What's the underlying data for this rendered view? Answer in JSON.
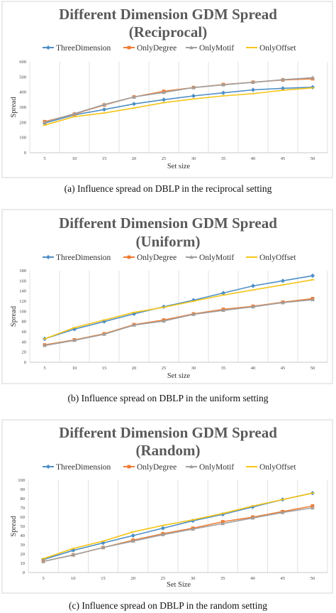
{
  "colors": {
    "ThreeDimension": "#4e8fc6",
    "OnlyDegree": "#ee7d35",
    "OnlyMotif": "#a0a0a0",
    "OnlyOffset": "#f5c518"
  },
  "chart_data": [
    {
      "type": "line",
      "title": [
        "Different Dimension GDM Spread",
        "(Reciprocal)"
      ],
      "xlabel": "Set size",
      "ylabel": "Spread",
      "caption": "(a)  Influence spread on DBLP in the reciprocal setting",
      "ylim": [
        0,
        600
      ],
      "yticks": [
        0,
        100,
        200,
        300,
        400,
        500,
        600
      ],
      "categories": [
        "5",
        "10",
        "15",
        "20",
        "25",
        "30",
        "35",
        "40",
        "45",
        "50"
      ],
      "grid": "vertical",
      "legend": "top",
      "series": [
        {
          "name": "ThreeDimension",
          "values": [
            195,
            250,
            285,
            322,
            350,
            375,
            395,
            415,
            425,
            432
          ]
        },
        {
          "name": "OnlyDegree",
          "values": [
            205,
            255,
            315,
            368,
            405,
            430,
            450,
            465,
            480,
            488
          ]
        },
        {
          "name": "OnlyMotif",
          "values": [
            200,
            258,
            318,
            368,
            398,
            430,
            448,
            465,
            482,
            495
          ]
        },
        {
          "name": "OnlyOffset",
          "values": [
            182,
            238,
            262,
            295,
            330,
            355,
            375,
            390,
            412,
            428
          ]
        }
      ]
    },
    {
      "type": "line",
      "title": [
        "Different Dimension GDM Spread",
        "(Uniform)"
      ],
      "xlabel": "Set size",
      "ylabel": "Spread",
      "caption": "(b)  Influence spread on DBLP in the uniform setting",
      "ylim": [
        0,
        180
      ],
      "yticks": [
        0,
        20,
        40,
        60,
        80,
        100,
        120,
        140,
        160,
        180
      ],
      "categories": [
        "5",
        "10",
        "15",
        "20",
        "25",
        "30",
        "35",
        "40",
        "45",
        "50"
      ],
      "grid": "vertical",
      "legend": "top",
      "series": [
        {
          "name": "ThreeDimension",
          "values": [
            46,
            65,
            80,
            95,
            109,
            122,
            136,
            150,
            160,
            170
          ]
        },
        {
          "name": "OnlyDegree",
          "values": [
            34,
            44,
            56,
            74,
            83,
            95,
            104,
            110,
            118,
            125
          ]
        },
        {
          "name": "OnlyMotif",
          "values": [
            33,
            43,
            55,
            73,
            81,
            94,
            102,
            109,
            117,
            123
          ]
        },
        {
          "name": "OnlyOffset",
          "values": [
            46,
            68,
            83,
            98,
            108,
            120,
            132,
            142,
            152,
            162
          ]
        }
      ]
    },
    {
      "type": "line",
      "title": [
        "Different Dimension GDM Spread",
        "(Random)"
      ],
      "xlabel": "Set Size",
      "ylabel": "Spread",
      "caption": "(c)  Influence spread on DBLP in the random setting",
      "ylim": [
        0,
        100
      ],
      "yticks": [
        0,
        10,
        20,
        30,
        40,
        50,
        60,
        70,
        80,
        90,
        100
      ],
      "categories": [
        "5",
        "10",
        "15",
        "20",
        "25",
        "30",
        "35",
        "40",
        "45",
        "50"
      ],
      "grid": "vertical",
      "legend": "top",
      "series": [
        {
          "name": "ThreeDimension",
          "values": [
            14,
            24,
            32,
            40,
            48,
            56,
            63,
            71,
            79,
            86
          ]
        },
        {
          "name": "OnlyDegree",
          "values": [
            12,
            19,
            27,
            35,
            42,
            48,
            55,
            60,
            66,
            72
          ]
        },
        {
          "name": "OnlyMotif",
          "values": [
            12,
            19,
            27,
            34,
            41,
            47,
            53,
            59,
            65,
            70
          ]
        },
        {
          "name": "OnlyOffset",
          "values": [
            15,
            26,
            34,
            44,
            51,
            57,
            64,
            72,
            79,
            86
          ]
        }
      ]
    }
  ]
}
